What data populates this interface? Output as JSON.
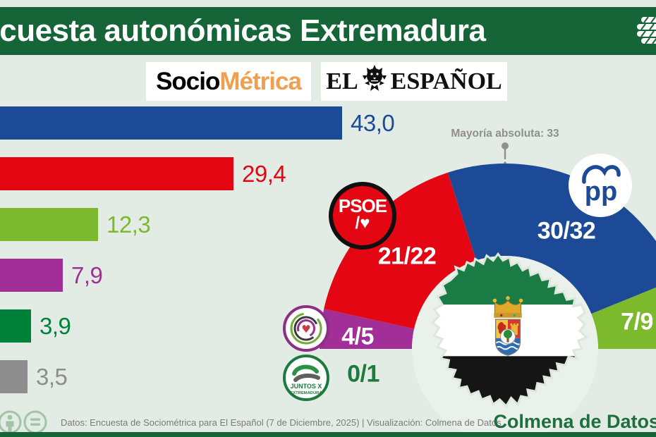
{
  "canvas": {
    "bg": "#e3ebe5"
  },
  "header": {
    "title": "Encuesta autonómicas Extremadura",
    "bg_color": "#166539",
    "brand_icon": "colmena-beehive"
  },
  "logos": {
    "sociometrica": {
      "part1": "Socio",
      "part2": "Métrica",
      "part1_color": "#1b1b1b",
      "part2_color": "#ef9f4d"
    },
    "el_espanol": {
      "part1": "EL",
      "part2": "ESPAÑOL",
      "icon": "lion"
    }
  },
  "chart_data": [
    {
      "type": "bar",
      "orientation": "horizontal",
      "x_max": 43.0,
      "bars": [
        {
          "value": 43.0,
          "label": "43,0",
          "color": "#1c4a96"
        },
        {
          "value": 29.4,
          "label": "29,4",
          "color": "#e40613"
        },
        {
          "value": 12.3,
          "label": "12,3",
          "color": "#7cb92d"
        },
        {
          "value": 7.9,
          "label": "7,9",
          "color": "#a22e97"
        },
        {
          "value": 3.9,
          "label": "3,9",
          "color": "#00813a"
        },
        {
          "value": 3.5,
          "label": "3,5",
          "color": "#8d8d8d"
        }
      ]
    },
    {
      "type": "hemicycle",
      "total_seats": 65,
      "majority_note": "Mayoría absoluta: 33",
      "segments": [
        {
          "id": "unidas-heart-logo",
          "label": "4/5",
          "seats_mid": 4.5,
          "color": "#a22e97",
          "label_color": "#ffffff"
        },
        {
          "id": "psoe",
          "label": "21/22",
          "seats_mid": 21.5,
          "color": "#e40613",
          "label_color": "#ffffff"
        },
        {
          "id": "pp",
          "label": "30/32",
          "seats_mid": 31,
          "color": "#1c4a96",
          "label_color": "#ffffff"
        },
        {
          "id": "green-right",
          "label": "7/9",
          "seats_mid": 8,
          "color": "#7cb92d",
          "label_color": "#ffffff"
        }
      ],
      "zero_seat": {
        "id": "juntos-extremadura",
        "label": "0/1",
        "label_color": "#1e7a3e"
      }
    }
  ],
  "party_logos": {
    "psoe": {
      "line1": "PSOE",
      "line2": "/♥"
    },
    "pp": {
      "text": "pp"
    },
    "juntos": {
      "line1": "JUNTOS X",
      "line2": "EXTREMADURA"
    }
  },
  "footer": {
    "credit": "Datos: Encuesta de Sociométrica para El Español (7 de Diciembre, 2025) | Visualización: Colmena de Datos",
    "brand": "Colmena de Datos",
    "brand_color": "#1d6f3f",
    "bar_color": "#166539"
  }
}
